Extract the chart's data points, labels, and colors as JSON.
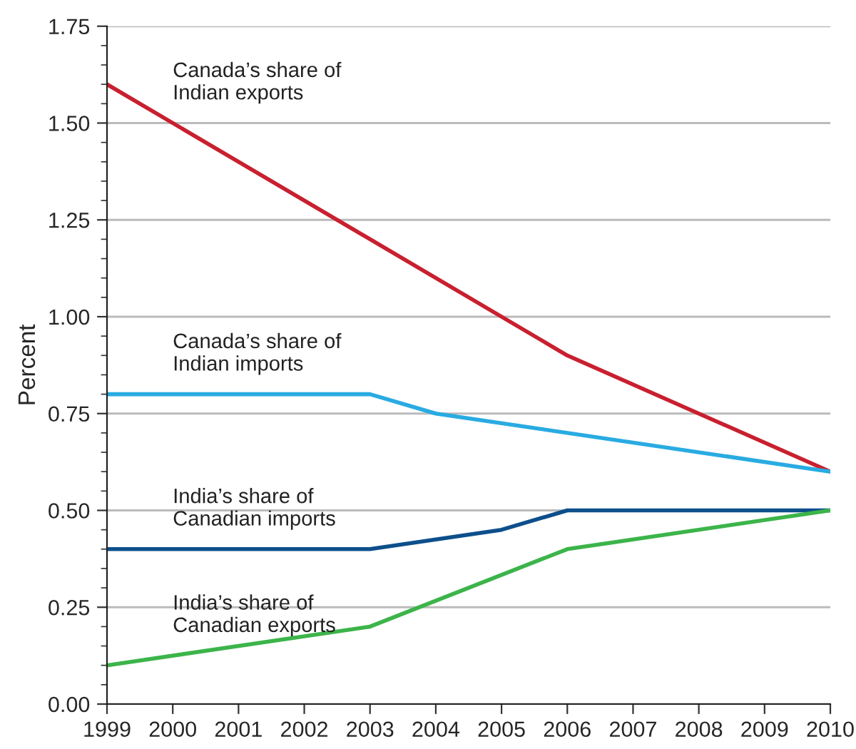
{
  "chart_data": {
    "type": "line",
    "ylabel": "Percent",
    "series": [
      {
        "name": "Canada’s share of\nIndian exports",
        "color": "#c8202f",
        "x": [
          1999,
          2006,
          2010
        ],
        "values": [
          1.6,
          0.9,
          0.6
        ]
      },
      {
        "name": "Canada’s share of\nIndian imports",
        "color": "#29abe2",
        "x": [
          1999,
          2003,
          2004,
          2010
        ],
        "values": [
          0.8,
          0.8,
          0.75,
          0.6
        ]
      },
      {
        "name": "India’s share of\nCanadian imports",
        "color": "#0d4f8b",
        "x": [
          1999,
          2003,
          2005,
          2006,
          2010
        ],
        "values": [
          0.4,
          0.4,
          0.45,
          0.5,
          0.5
        ]
      },
      {
        "name": "India’s share of\nCanadian exports",
        "color": "#3cb44a",
        "x": [
          1999,
          2003,
          2006,
          2010
        ],
        "values": [
          0.1,
          0.2,
          0.4,
          0.5
        ]
      }
    ],
    "xlim": [
      1999,
      2010
    ],
    "xticks": [
      1999,
      2000,
      2001,
      2002,
      2003,
      2004,
      2005,
      2006,
      2007,
      2008,
      2009,
      2010
    ],
    "ylim": [
      0,
      1.75
    ],
    "yticks": [
      {
        "value": 0,
        "label": "0.00"
      },
      {
        "value": 0.25,
        "label": "0.25"
      },
      {
        "value": 0.5,
        "label": "0.50"
      },
      {
        "value": 0.75,
        "label": "0.75"
      },
      {
        "value": 1.0,
        "label": "1.00"
      },
      {
        "value": 1.25,
        "label": "1.25"
      },
      {
        "value": 1.5,
        "label": "1.50"
      },
      {
        "value": 1.75,
        "label": "1.75"
      }
    ],
    "grid": "y",
    "legend": false,
    "marker": "none",
    "line_style": "solid"
  }
}
